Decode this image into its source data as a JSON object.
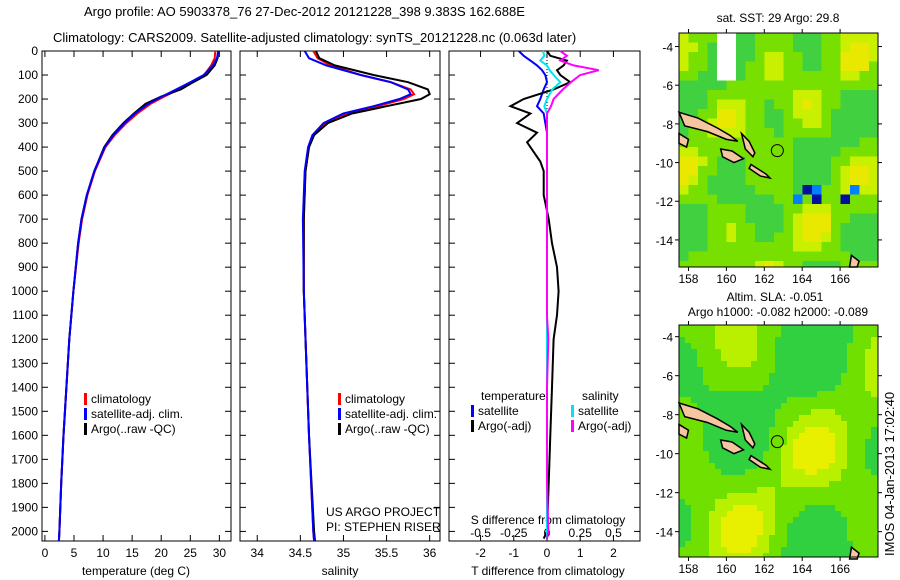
{
  "title_line1": "Argo profile: AO 5903378_76 27-Dec-2012 20121228_398 9.383S 162.688E",
  "title_line2": "Climatology: CARS2009. Satellite-adjusted climatology: synTS_20121228.nc (0.063d later)",
  "credit": [
    "US ARGO PROJECT",
    "PI: STEPHEN RISER"
  ],
  "side_stamp": "IMOS 04-Jan-2013 17:02:40",
  "colors": {
    "clim": "#ff0000",
    "sat": "#0000ff",
    "argo": "#000000",
    "sal_sat": "#00e5ee",
    "sal_argo": "#ff00ff",
    "land": "#f5c6a0"
  },
  "chart_data": [
    {
      "type": "line",
      "name": "temperature",
      "xlabel": "temperature (deg C)",
      "xlim": [
        -0.5,
        32
      ],
      "ylim": [
        2040,
        0
      ],
      "xticks": [
        0,
        5,
        10,
        15,
        20,
        25,
        30
      ],
      "yticks": [
        0,
        100,
        200,
        300,
        400,
        500,
        600,
        700,
        800,
        900,
        1000,
        1100,
        1200,
        1300,
        1400,
        1500,
        1600,
        1700,
        1800,
        1900,
        2000
      ],
      "legend": [
        "climatology",
        "satellite-adj. clim.",
        "Argo(..raw -QC)"
      ],
      "depth": [
        0,
        30,
        60,
        100,
        130,
        160,
        190,
        220,
        260,
        300,
        350,
        400,
        500,
        600,
        700,
        800,
        1000,
        1200,
        1400,
        1600,
        1800,
        2000,
        2040
      ],
      "series": [
        {
          "name": "climatology",
          "values": [
            29.3,
            29.2,
            28.6,
            27.4,
            25.3,
            23.0,
            20.5,
            18.2,
            15.9,
            14.0,
            12.0,
            10.4,
            8.6,
            7.3,
            6.4,
            5.8,
            4.9,
            4.2,
            3.7,
            3.2,
            2.8,
            2.5,
            2.4
          ]
        },
        {
          "name": "satellite-adj. clim.",
          "values": [
            29.8,
            29.6,
            28.9,
            27.3,
            25.0,
            22.6,
            20.1,
            17.8,
            15.5,
            13.7,
            11.8,
            10.3,
            8.5,
            7.2,
            6.3,
            5.7,
            4.9,
            4.2,
            3.7,
            3.2,
            2.8,
            2.5,
            2.4
          ]
        },
        {
          "name": "Argo",
          "values": [
            29.8,
            29.7,
            29.2,
            27.8,
            25.5,
            23.4,
            20.0,
            17.3,
            15.3,
            13.5,
            11.6,
            10.2,
            8.5,
            7.2,
            6.3,
            5.7,
            4.9,
            4.2,
            3.7,
            3.2,
            2.8,
            2.5,
            2.4
          ]
        }
      ]
    },
    {
      "type": "line",
      "name": "salinity",
      "xlabel": "salinity",
      "xlim": [
        33.8,
        36.12
      ],
      "ylim": [
        2040,
        0
      ],
      "xticks": [
        34,
        34.5,
        35,
        35.5,
        36
      ],
      "legend": [
        "climatology",
        "satellite-adj. clim.",
        "Argo(..raw -QC)"
      ],
      "depth": [
        0,
        30,
        60,
        100,
        130,
        160,
        180,
        200,
        230,
        260,
        300,
        350,
        400,
        500,
        700,
        1000,
        1300,
        1600,
        2000,
        2040
      ],
      "series": [
        {
          "name": "climatology",
          "values": [
            34.65,
            34.7,
            34.85,
            35.2,
            35.55,
            35.78,
            35.82,
            35.7,
            35.4,
            35.05,
            34.8,
            34.66,
            34.6,
            34.56,
            34.54,
            34.54,
            34.57,
            34.6,
            34.65,
            34.66
          ]
        },
        {
          "name": "satellite-adj. clim.",
          "values": [
            34.55,
            34.6,
            34.8,
            35.2,
            35.55,
            35.75,
            35.78,
            35.65,
            35.35,
            35.0,
            34.77,
            34.64,
            34.59,
            34.55,
            34.53,
            34.54,
            34.57,
            34.6,
            34.65,
            34.66
          ]
        },
        {
          "name": "Argo",
          "values": [
            34.68,
            34.72,
            34.9,
            35.35,
            35.75,
            35.98,
            36.0,
            35.9,
            35.5,
            35.1,
            34.82,
            34.66,
            34.6,
            34.56,
            34.54,
            34.54,
            34.57,
            34.6,
            34.66,
            34.67
          ]
        }
      ]
    },
    {
      "type": "line",
      "name": "difference",
      "xlabel": "T difference from climatology",
      "xlabel2": "S difference from climatology",
      "xlim": [
        -2.95,
        2.8
      ],
      "ylim": [
        2040,
        0
      ],
      "xticks": [
        -2,
        -1,
        0,
        1,
        2
      ],
      "xticks2": [
        -0.5,
        -0.25,
        0,
        0.25,
        0.5
      ],
      "legend_headers": [
        "temperature",
        "salinity"
      ],
      "legend": [
        "satellite",
        "Argo(-adj)",
        "satellite",
        "Argo(-adj)"
      ],
      "depth": [
        0,
        20,
        40,
        60,
        80,
        100,
        130,
        160,
        200,
        230,
        260,
        300,
        340,
        380,
        420,
        460,
        500,
        600,
        700,
        800,
        900,
        1000,
        1100,
        1200,
        1400,
        1600,
        1800,
        2000,
        2030
      ],
      "series": [
        {
          "name": "T satellite",
          "axis": "T",
          "values": [
            -0.85,
            -0.7,
            -0.5,
            -0.3,
            -0.15,
            -0.05,
            0.0,
            -0.1,
            -0.2,
            -0.3,
            -0.1,
            -0.05,
            0.0,
            0.0,
            0.0,
            0.0,
            0.0,
            0.0,
            0.0,
            0.0,
            0.0,
            0.0,
            0.0,
            0.0,
            0.0,
            0.0,
            0.0,
            0.0,
            0.0
          ]
        },
        {
          "name": "T Argo(-adj)",
          "axis": "T",
          "values": [
            0.0,
            0.1,
            0.6,
            0.5,
            0.3,
            0.4,
            0.7,
            0.2,
            -0.7,
            -1.1,
            -0.5,
            -0.9,
            -0.3,
            -0.6,
            -0.4,
            -0.2,
            -0.1,
            -0.1,
            0.05,
            0.15,
            0.3,
            0.35,
            0.3,
            0.2,
            0.15,
            0.1,
            0.05,
            0.0,
            -0.1
          ]
        },
        {
          "name": "S satellite",
          "axis": "S",
          "values": [
            -0.03,
            -0.02,
            -0.05,
            0.0,
            0.02,
            0.05,
            0.1,
            0.04,
            0.0,
            -0.02,
            0.0,
            0.0,
            0.0,
            0.0,
            0.0,
            0.0,
            0.0,
            0.0,
            0.0,
            0.0,
            0.0,
            0.0,
            0.0,
            0.0,
            0.0,
            0.0,
            0.0,
            0.0,
            0.0
          ]
        },
        {
          "name": "S Argo(-adj)",
          "axis": "S",
          "values": [
            0.1,
            0.15,
            0.1,
            0.2,
            0.39,
            0.25,
            0.18,
            0.12,
            0.05,
            0.03,
            0.0,
            0.0,
            0.0,
            0.0,
            0.0,
            0.0,
            0.0,
            0.0,
            0.0,
            0.0,
            0.0,
            0.0,
            0.0,
            0.01,
            0.0,
            0.0,
            0.0,
            0.01,
            0.0
          ]
        }
      ]
    },
    {
      "type": "heatmap",
      "name": "sst-map",
      "title": "sat. SST: 29 Argo: 29.8",
      "xlim": [
        157.5,
        168
      ],
      "ylim": [
        -15.4,
        -3.3
      ],
      "xticks": [
        158,
        160,
        162,
        164,
        166
      ],
      "yticks": [
        -4,
        -6,
        -8,
        -10,
        -12,
        -14
      ],
      "marker": [
        162.688,
        -9.383
      ]
    },
    {
      "type": "heatmap",
      "name": "sla-map",
      "title": "Altim. SLA: -0.051",
      "subtitle": "Argo h1000: -0.082 h2000: -0.089",
      "xlim": [
        157.5,
        168
      ],
      "ylim": [
        -15.3,
        -3.4
      ],
      "xticks": [
        158,
        160,
        162,
        164,
        166
      ],
      "yticks": [
        -4,
        -6,
        -8,
        -10,
        -12,
        -14
      ],
      "marker": [
        162.688,
        -9.383
      ]
    }
  ]
}
